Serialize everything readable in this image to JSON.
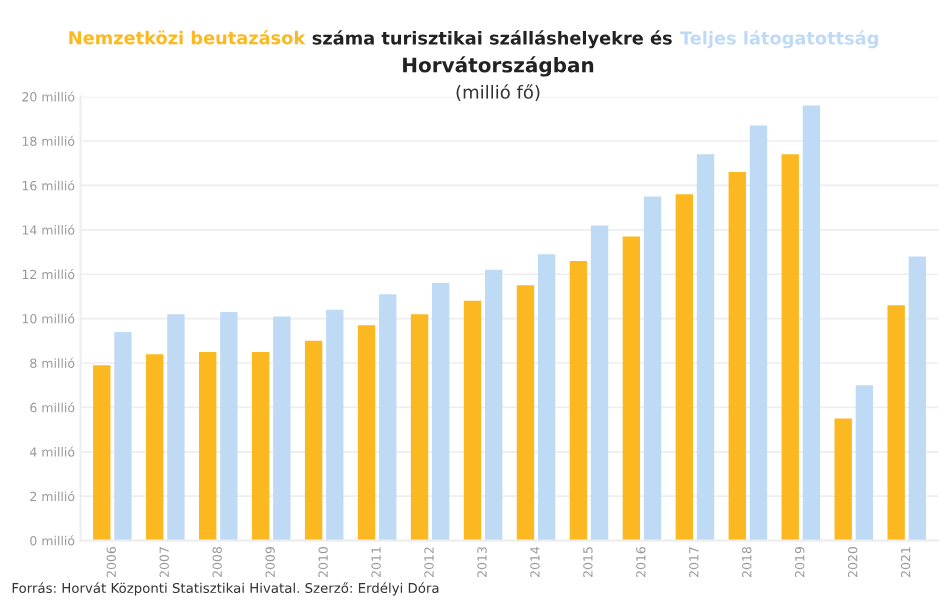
{
  "chart_data": {
    "type": "bar",
    "title": "száma turisztikai szálláshelyekre és",
    "subtitle": "Horvátországban",
    "categories": [
      "2006",
      "2007",
      "2008",
      "2009",
      "2010",
      "2011",
      "2012",
      "2013",
      "2014",
      "2015",
      "2016",
      "2017",
      "2018",
      "2019",
      "2020",
      "2021"
    ],
    "series": [
      {
        "name": "Nemzetközi beutazások",
        "color": "#fbb820",
        "values": [
          7.9,
          8.4,
          8.5,
          8.5,
          9.0,
          9.7,
          10.2,
          10.8,
          11.5,
          12.6,
          13.7,
          15.6,
          16.6,
          17.4,
          5.5,
          10.6
        ]
      },
      {
        "name": "Teljes látogatottság",
        "color": "#bfdaf4",
        "values": [
          9.4,
          10.2,
          10.3,
          10.1,
          10.4,
          11.1,
          11.6,
          12.2,
          12.9,
          14.2,
          15.5,
          17.4,
          18.7,
          19.6,
          7.0,
          12.8
        ]
      }
    ],
    "ylim": [
      0,
      20
    ],
    "yticks": [
      {
        "value": 0,
        "label": "0 millió"
      },
      {
        "value": 2,
        "label": "2 millió"
      },
      {
        "value": 4,
        "label": "4 millió"
      },
      {
        "value": 6,
        "label": "6 millió"
      },
      {
        "value": 8,
        "label": "8 millió"
      },
      {
        "value": 10,
        "label": "10 millió"
      },
      {
        "value": 12,
        "label": "12 millió"
      },
      {
        "value": 14,
        "label": "14 millió"
      },
      {
        "value": 16,
        "label": "16 millió"
      },
      {
        "value": 18,
        "label": "18 millió"
      },
      {
        "value": 20,
        "label": "20 millió"
      }
    ],
    "grid": "y",
    "legend": false,
    "annotations": [
      "(millió fő)",
      "Forrás: Horvát Központi Statisztikai Hivatal. Szerző: Erdélyi Dóra"
    ]
  }
}
